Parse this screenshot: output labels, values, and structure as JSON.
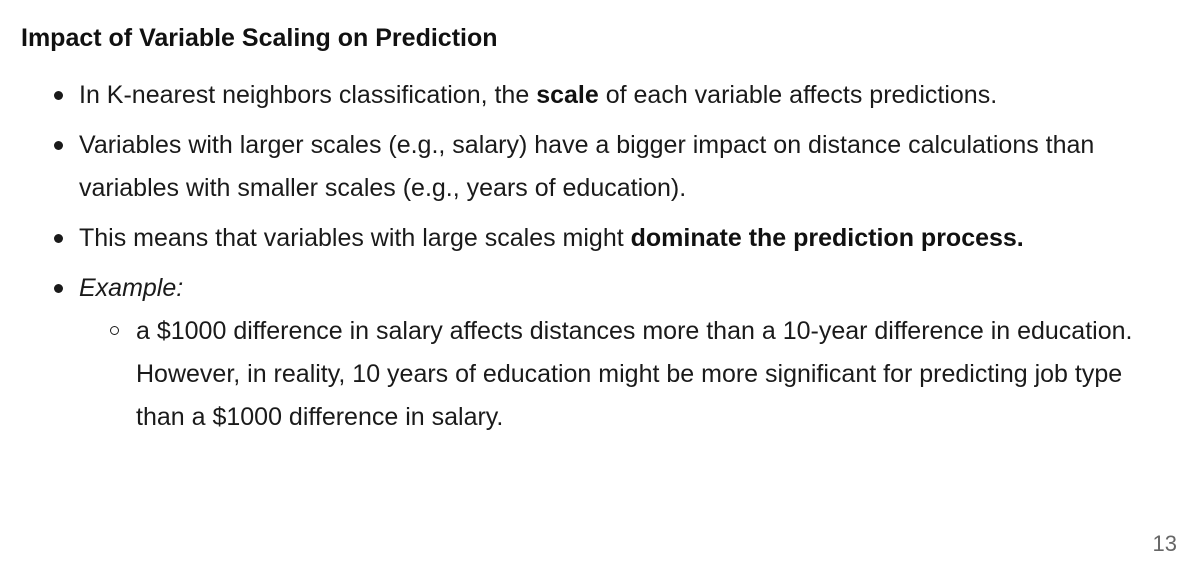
{
  "title": "Impact of Variable Scaling on Prediction",
  "bullets": {
    "b1": {
      "pre": "In K-nearest neighbors classification, the ",
      "bold": "scale",
      "post": " of each variable affects predictions."
    },
    "b2": {
      "text": "Variables with larger scales (e.g., salary) have a bigger impact on distance calculations than variables with smaller scales (e.g., years of education)."
    },
    "b3": {
      "pre": "This means that variables with large scales might ",
      "bold": "dominate the prediction process."
    },
    "b4": {
      "italic": "Example:",
      "sub": "a $1000 difference in salary affects distances more than a 10-year difference in education. However, in reality, 10 years of education might be more significant for predicting job type than a $1000 difference in salary."
    }
  },
  "page_number": "13"
}
